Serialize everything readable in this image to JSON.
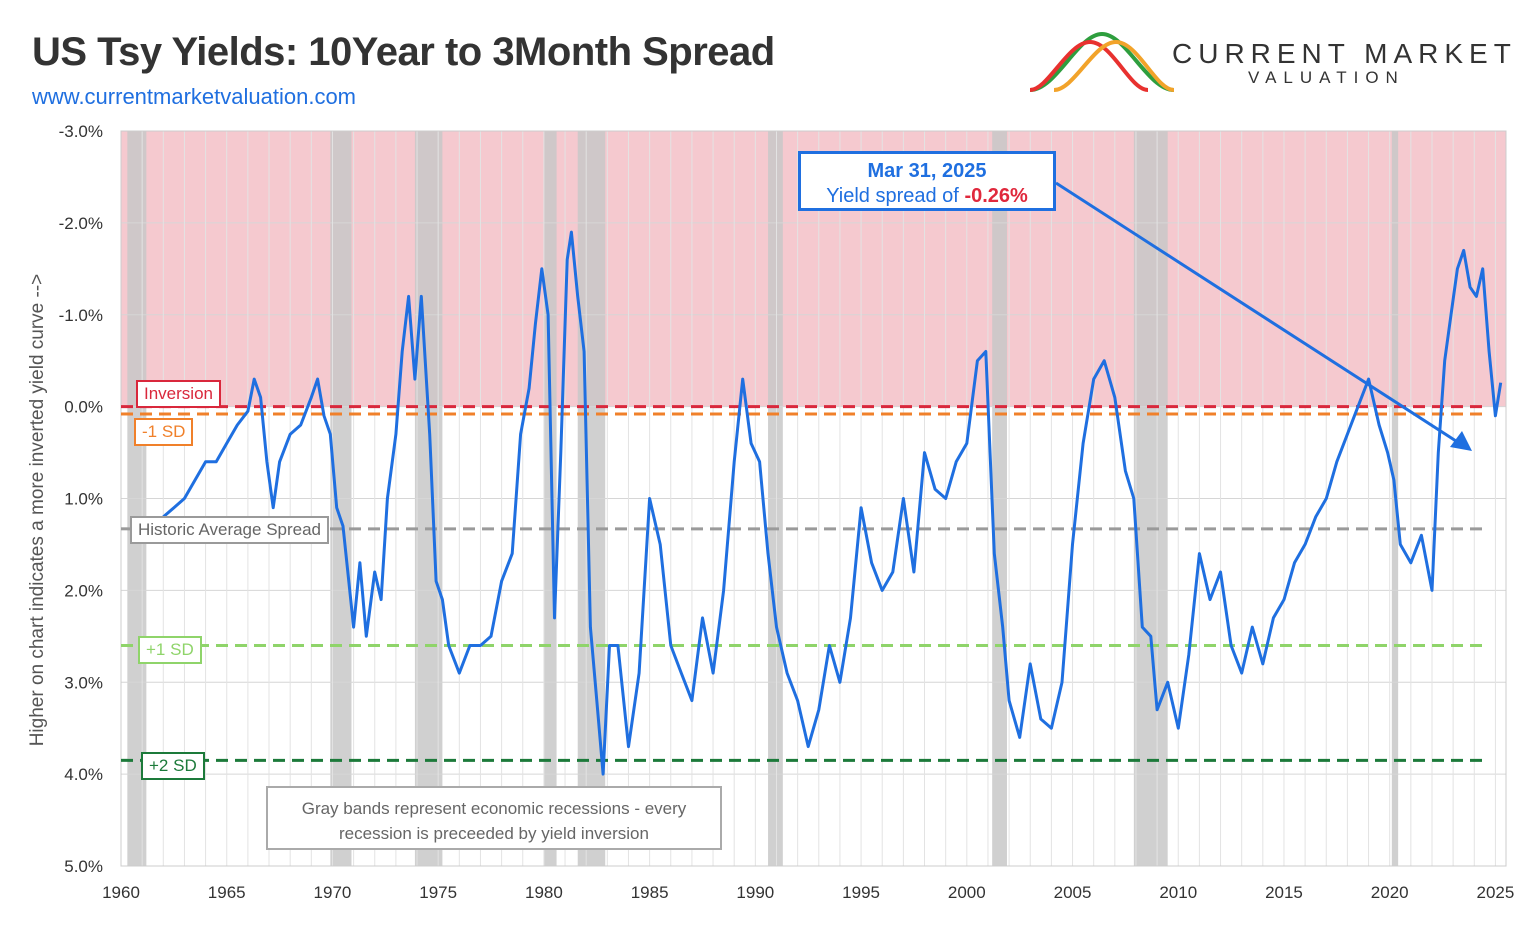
{
  "title": "US Tsy Yields: 10Year to 3Month Spread",
  "website": "www.currentmarketvaluation.com",
  "logo": {
    "line1": "CURRENT MARKET",
    "line2": "VALUATION",
    "colors": [
      "#2e9e3e",
      "#e8312f",
      "#f2a32a"
    ]
  },
  "colors": {
    "series": "#1f6fe0",
    "inversion_zone": "#f5c9cf",
    "recession_band": "#c8c8c8",
    "inversion_line": "#d9283c",
    "sd_minus1": "#f0802a",
    "average": "#9a9a9a",
    "sd_plus1": "#8fd46a",
    "sd_plus2": "#1c7a3a"
  },
  "annotation": {
    "date": "Mar 31, 2025",
    "prefix": "Yield spread of",
    "value": "-0.26%"
  },
  "reference_labels": {
    "inversion": "Inversion",
    "minus1sd": "-1 SD",
    "average": "Historic Average Spread",
    "plus1sd": "+1 SD",
    "plus2sd": "+2 SD"
  },
  "note": {
    "line1": "Gray bands represent economic recessions - every",
    "line2": "recession is preceeded by yield inversion"
  },
  "chart_data": {
    "type": "line",
    "title": "US Tsy Yields: 10Year to 3Month Spread",
    "ylabel": "Higher on chart indicates a more inverted yield curve -->",
    "xlabel": "",
    "x_ticks": [
      1960,
      1965,
      1970,
      1975,
      1980,
      1985,
      1990,
      1995,
      2000,
      2005,
      2010,
      2015,
      2020,
      2025
    ],
    "y_ticks": [
      "-3.0%",
      "-2.0%",
      "-1.0%",
      "0.0%",
      "1.0%",
      "2.0%",
      "3.0%",
      "4.0%",
      "5.0%"
    ],
    "y_tick_values": [
      -3,
      -2,
      -1,
      0,
      1,
      2,
      3,
      4,
      5
    ],
    "xlim": [
      1960,
      2025.5
    ],
    "ylim": [
      5,
      -3
    ],
    "y_axis_inverted": true,
    "grid": true,
    "inversion_zone": [
      -3,
      0
    ],
    "reference_lines": [
      {
        "label": "Inversion",
        "value": 0.0
      },
      {
        "label": "-1 SD",
        "value": 0.08
      },
      {
        "label": "Historic Average Spread",
        "value": 1.33
      },
      {
        "label": "+1 SD",
        "value": 2.6
      },
      {
        "label": "+2 SD",
        "value": 3.85
      }
    ],
    "recessions": [
      [
        1960.3,
        1961.2
      ],
      [
        1969.9,
        1970.9
      ],
      [
        1973.9,
        1975.2
      ],
      [
        1980.0,
        1980.6
      ],
      [
        1981.6,
        1982.9
      ],
      [
        1990.6,
        1991.3
      ],
      [
        2001.2,
        2001.9
      ],
      [
        2007.9,
        2009.5
      ],
      [
        2020.1,
        2020.4
      ]
    ],
    "series": [
      {
        "x": [
          1962.0,
          1962.5,
          1963.0,
          1963.5,
          1964.0,
          1964.5,
          1965.0,
          1965.5,
          1966.0,
          1966.3,
          1966.6,
          1966.9,
          1967.2,
          1967.5,
          1968.0,
          1968.5,
          1969.0,
          1969.3,
          1969.6,
          1969.9,
          1970.2,
          1970.5,
          1971.0,
          1971.3,
          1971.6,
          1972.0,
          1972.3,
          1972.6,
          1973.0,
          1973.3,
          1973.6,
          1973.9,
          1974.2,
          1974.6,
          1974.9,
          1975.2,
          1975.5,
          1976.0,
          1976.5,
          1977.0,
          1977.5,
          1978.0,
          1978.5,
          1978.9,
          1979.3,
          1979.6,
          1979.9,
          1980.2,
          1980.5,
          1980.8,
          1981.1,
          1981.3,
          1981.6,
          1981.9,
          1982.2,
          1982.5,
          1982.8,
          1983.1,
          1983.5,
          1984.0,
          1984.5,
          1985.0,
          1985.5,
          1986.0,
          1986.5,
          1987.0,
          1987.5,
          1988.0,
          1988.5,
          1989.0,
          1989.4,
          1989.8,
          1990.2,
          1990.6,
          1991.0,
          1991.5,
          1992.0,
          1992.5,
          1993.0,
          1993.5,
          1994.0,
          1994.5,
          1995.0,
          1995.5,
          1996.0,
          1996.5,
          1997.0,
          1997.5,
          1998.0,
          1998.5,
          1999.0,
          1999.5,
          2000.0,
          2000.5,
          2000.9,
          2001.3,
          2001.7,
          2002.0,
          2002.5,
          2003.0,
          2003.5,
          2004.0,
          2004.5,
          2005.0,
          2005.5,
          2006.0,
          2006.5,
          2007.0,
          2007.5,
          2007.9,
          2008.3,
          2008.7,
          2009.0,
          2009.5,
          2010.0,
          2010.5,
          2011.0,
          2011.5,
          2012.0,
          2012.5,
          2013.0,
          2013.5,
          2014.0,
          2014.5,
          2015.0,
          2015.5,
          2016.0,
          2016.5,
          2017.0,
          2017.5,
          2018.0,
          2018.5,
          2019.0,
          2019.5,
          2019.9,
          2020.2,
          2020.5,
          2021.0,
          2021.5,
          2022.0,
          2022.3,
          2022.6,
          2022.9,
          2023.2,
          2023.5,
          2023.8,
          2024.1,
          2024.4,
          2024.7,
          2025.0,
          2025.25
        ],
        "values": [
          1.2,
          1.1,
          1.0,
          0.8,
          0.6,
          0.6,
          0.4,
          0.2,
          0.05,
          -0.3,
          -0.1,
          0.6,
          1.1,
          0.6,
          0.3,
          0.2,
          -0.1,
          -0.3,
          0.1,
          0.3,
          1.1,
          1.3,
          2.4,
          1.7,
          2.5,
          1.8,
          2.1,
          1.0,
          0.3,
          -0.6,
          -1.2,
          -0.3,
          -1.2,
          0.3,
          1.9,
          2.1,
          2.6,
          2.9,
          2.6,
          2.6,
          2.5,
          1.9,
          1.6,
          0.3,
          -0.2,
          -0.9,
          -1.5,
          -1.0,
          2.3,
          0.5,
          -1.6,
          -1.9,
          -1.2,
          -0.6,
          2.4,
          3.2,
          4.0,
          2.6,
          2.6,
          3.7,
          2.9,
          1.0,
          1.5,
          2.6,
          2.9,
          3.2,
          2.3,
          2.9,
          2.0,
          0.6,
          -0.3,
          0.4,
          0.6,
          1.6,
          2.4,
          2.9,
          3.2,
          3.7,
          3.3,
          2.6,
          3.0,
          2.3,
          1.1,
          1.7,
          2.0,
          1.8,
          1.0,
          1.8,
          0.5,
          0.9,
          1.0,
          0.6,
          0.4,
          -0.5,
          -0.6,
          1.6,
          2.4,
          3.2,
          3.6,
          2.8,
          3.4,
          3.5,
          3.0,
          1.5,
          0.4,
          -0.3,
          -0.5,
          -0.1,
          0.7,
          1.0,
          2.4,
          2.5,
          3.3,
          3.0,
          3.5,
          2.7,
          1.6,
          2.1,
          1.8,
          2.6,
          2.9,
          2.4,
          2.8,
          2.3,
          2.1,
          1.7,
          1.5,
          1.2,
          1.0,
          0.6,
          0.3,
          0.0,
          -0.3,
          0.2,
          0.5,
          0.8,
          1.5,
          1.7,
          1.4,
          2.0,
          0.5,
          -0.5,
          -1.0,
          -1.5,
          -1.7,
          -1.3,
          -1.2,
          -1.5,
          -0.6,
          0.1,
          -0.26
        ]
      }
    ]
  }
}
